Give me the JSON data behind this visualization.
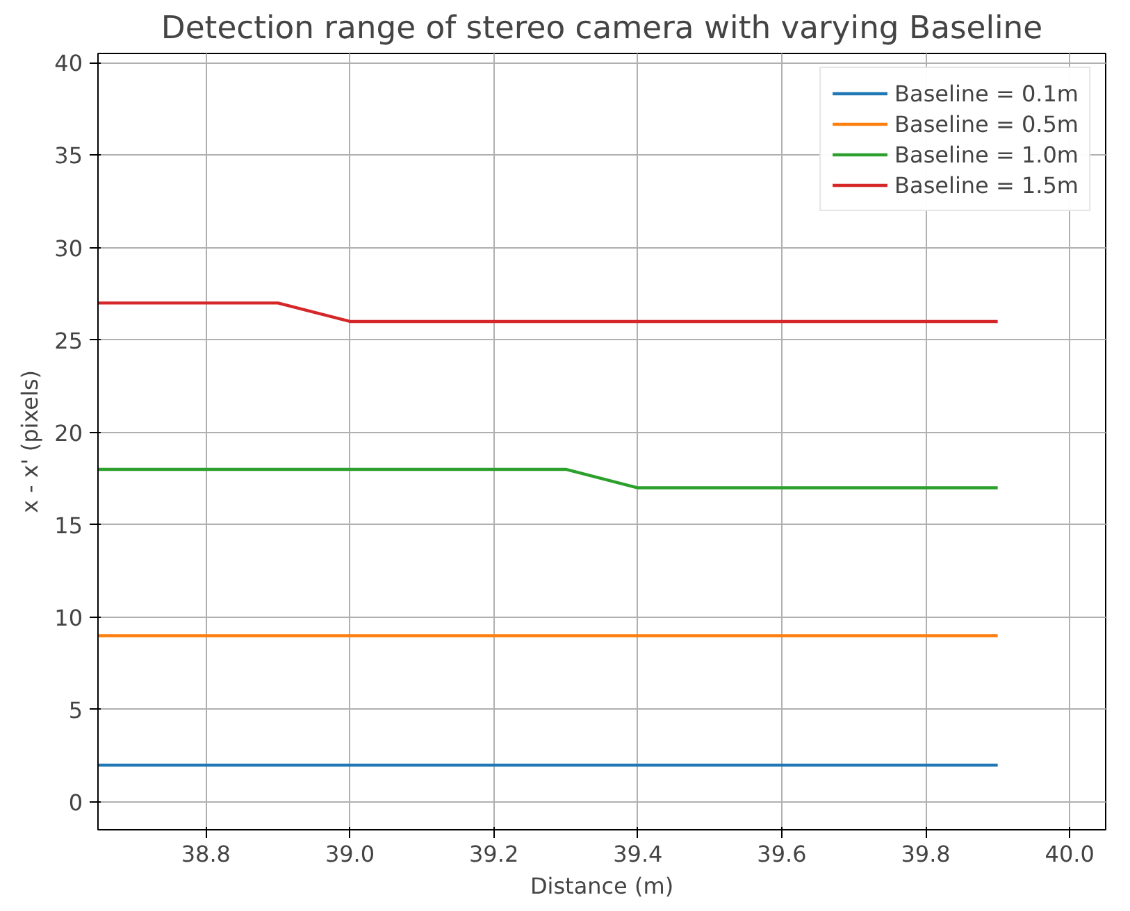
{
  "chart_data": {
    "type": "line",
    "title": "Detection range of stereo camera with varying Baseline",
    "xlabel": "Distance (m)",
    "ylabel": "x - x' (pixels)",
    "series": [
      {
        "name": "Baseline = 0.1m",
        "color": "#1f77b4",
        "x": [
          38.65,
          39.9
        ],
        "values": [
          2,
          2
        ]
      },
      {
        "name": "Baseline = 0.5m",
        "color": "#ff7f0e",
        "x": [
          38.65,
          39.9
        ],
        "values": [
          9,
          9
        ]
      },
      {
        "name": "Baseline = 1.0m",
        "color": "#2ca02c",
        "x": [
          38.65,
          39.3,
          39.4,
          39.9
        ],
        "values": [
          18,
          18,
          17,
          17
        ]
      },
      {
        "name": "Baseline = 1.5m",
        "color": "#d62728",
        "x": [
          38.65,
          38.9,
          39.0,
          39.9
        ],
        "values": [
          27,
          27,
          26,
          26
        ]
      }
    ],
    "xlim": [
      38.65,
      40.05
    ],
    "ylim": [
      -1.5,
      40.5
    ],
    "xticks": [
      {
        "value": 38.8,
        "label": "38.8"
      },
      {
        "value": 39.0,
        "label": "39.0"
      },
      {
        "value": 39.2,
        "label": "39.2"
      },
      {
        "value": 39.4,
        "label": "39.4"
      },
      {
        "value": 39.6,
        "label": "39.6"
      },
      {
        "value": 39.8,
        "label": "39.8"
      },
      {
        "value": 40.0,
        "label": "40.0"
      }
    ],
    "yticks": [
      0,
      5,
      10,
      15,
      20,
      25,
      30,
      35,
      40
    ],
    "grid": true,
    "legend": "top right"
  }
}
